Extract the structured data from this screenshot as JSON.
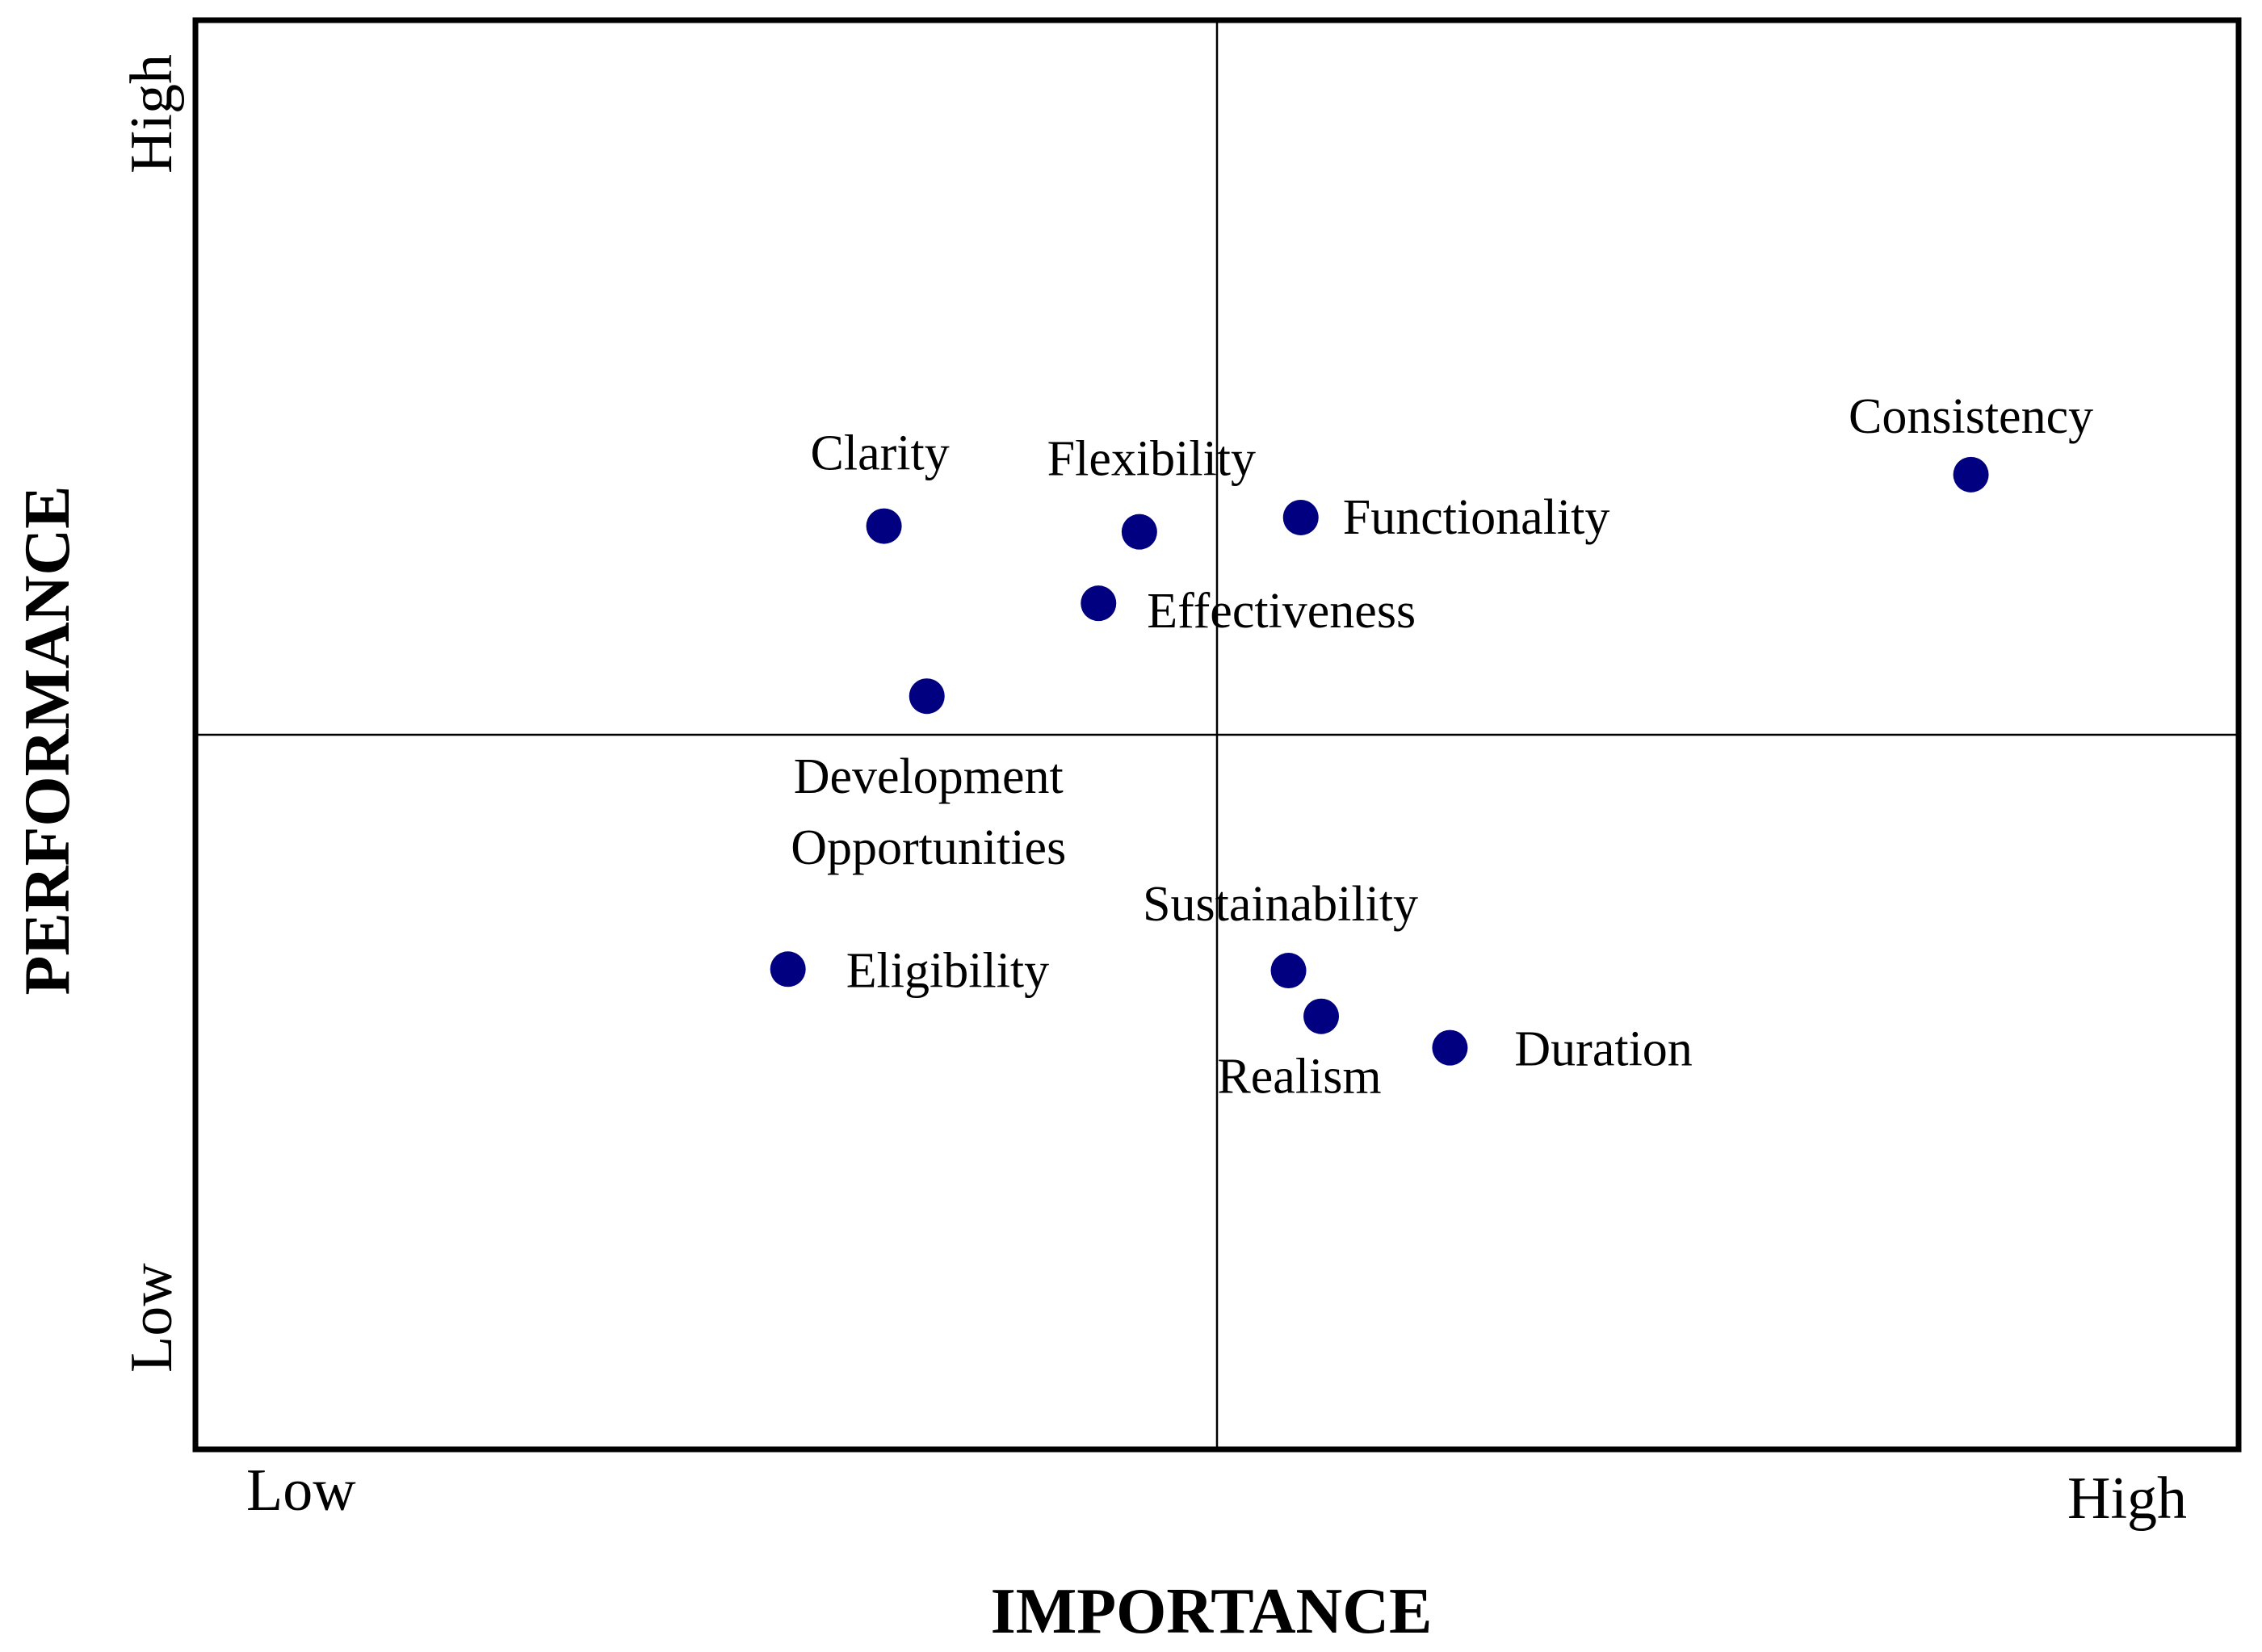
{
  "chart_data": {
    "type": "scatter",
    "title": "",
    "xlabel": "IMPORTANCE",
    "ylabel": "PERFORMANCE",
    "xlim": [
      0,
      10
    ],
    "ylim": [
      0,
      10
    ],
    "x_divider": 5,
    "y_divider": 5,
    "x_tick_labels": {
      "low": "Low",
      "high": "High"
    },
    "y_tick_labels": {
      "low": "Low",
      "high": "High"
    },
    "marker_color": "#000080",
    "points": [
      {
        "label": "Clarity",
        "x": 3.37,
        "y": 6.46
      },
      {
        "label": "Flexibility",
        "x": 4.62,
        "y": 6.42
      },
      {
        "label": "Functionality",
        "x": 5.41,
        "y": 6.52
      },
      {
        "label": "Consistency",
        "x": 8.69,
        "y": 6.82
      },
      {
        "label": "Effectiveness",
        "x": 4.42,
        "y": 5.92
      },
      {
        "label": "Development Opportunities",
        "label_lines": [
          "Development",
          "Opportunities"
        ],
        "x": 3.58,
        "y": 5.27
      },
      {
        "label": "Eligibility",
        "x": 2.9,
        "y": 3.36
      },
      {
        "label": "Sustainability",
        "x": 5.35,
        "y": 3.35
      },
      {
        "label": "Realism",
        "x": 5.51,
        "y": 3.03
      },
      {
        "label": "Duration",
        "x": 6.14,
        "y": 2.81
      }
    ]
  }
}
